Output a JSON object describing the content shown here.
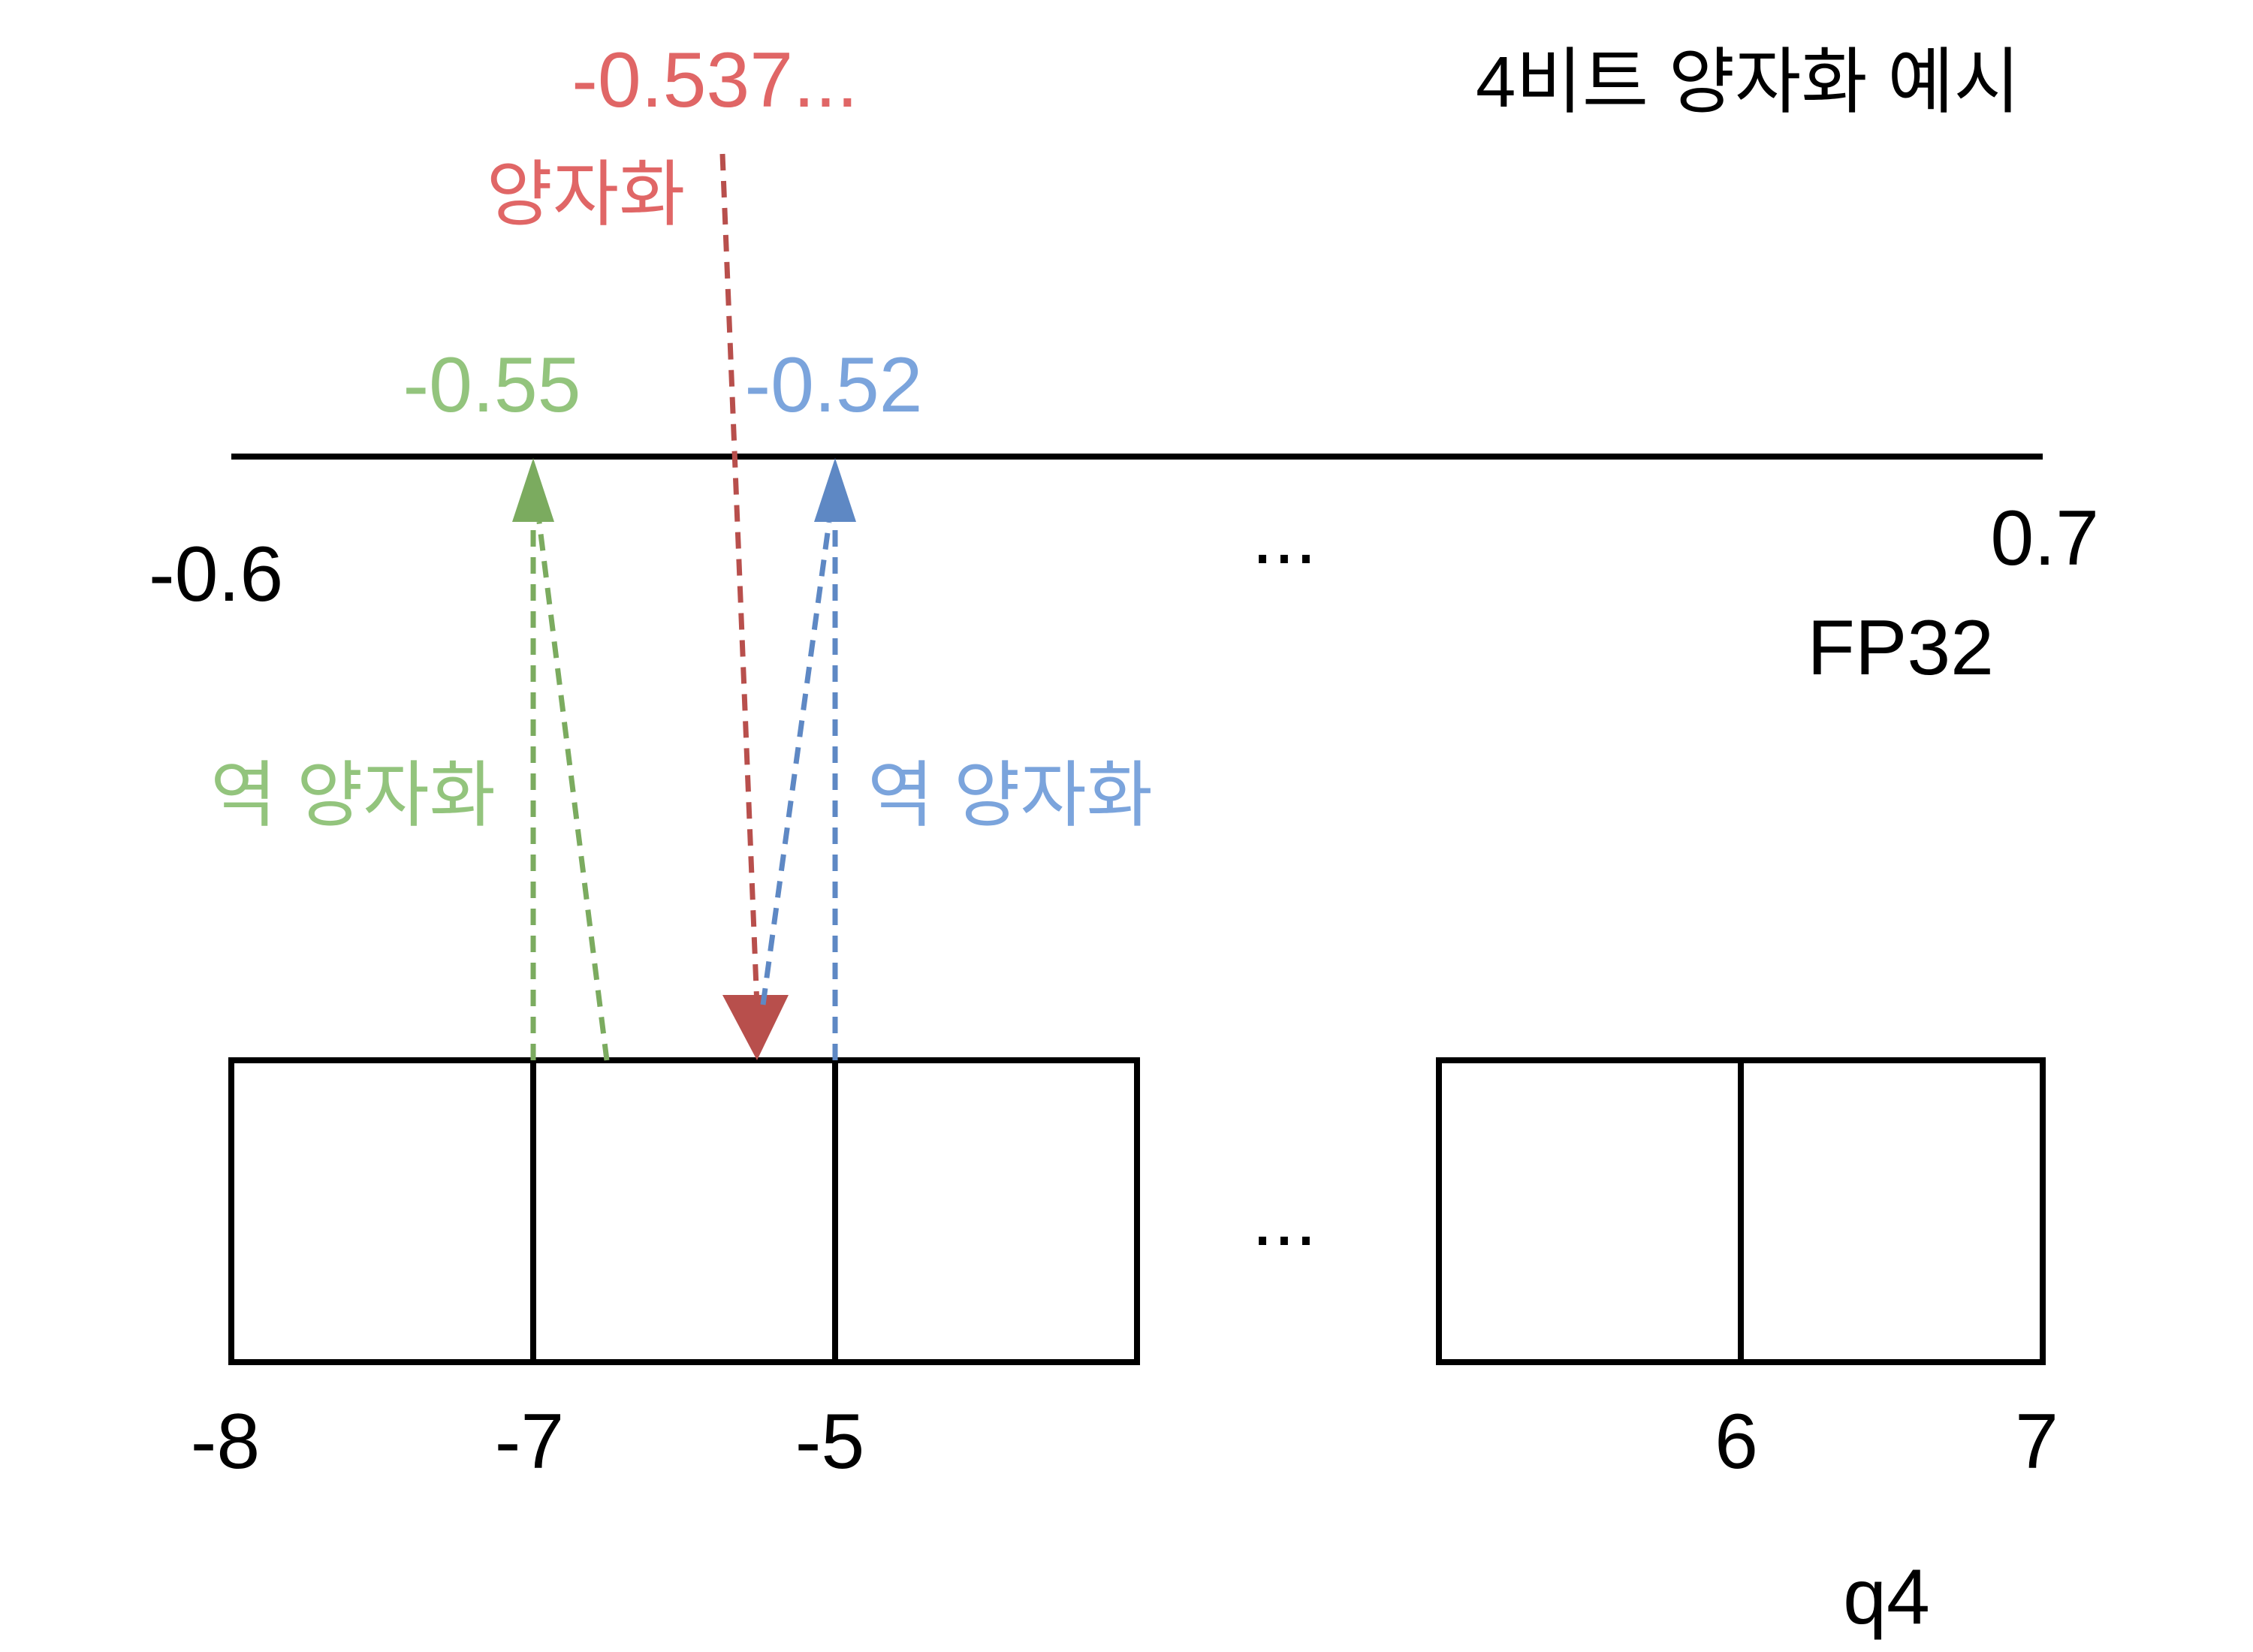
{
  "title": "4비트 양자화 예시",
  "fp32": {
    "label": "FP32",
    "min_label": "-0.6",
    "max_label": "0.7",
    "ellipsis": "..."
  },
  "q4": {
    "label": "q4",
    "ellipsis": "...",
    "tick_labels": [
      "-8",
      "-7",
      "-5",
      "6",
      "7"
    ]
  },
  "original_value": {
    "value": "-0.537...",
    "action_label": "양자화",
    "color": "#e06666"
  },
  "dequant_green": {
    "value": "-0.55",
    "action_label": "역 양자화",
    "color": "#93c47d",
    "arrow_color": "#7bab5f"
  },
  "dequant_blue": {
    "value": "-0.52",
    "action_label": "역 양자화",
    "color": "#7ba4dc",
    "arrow_color": "#5e88c4"
  },
  "quant_arrow_color": "#b84f4c"
}
